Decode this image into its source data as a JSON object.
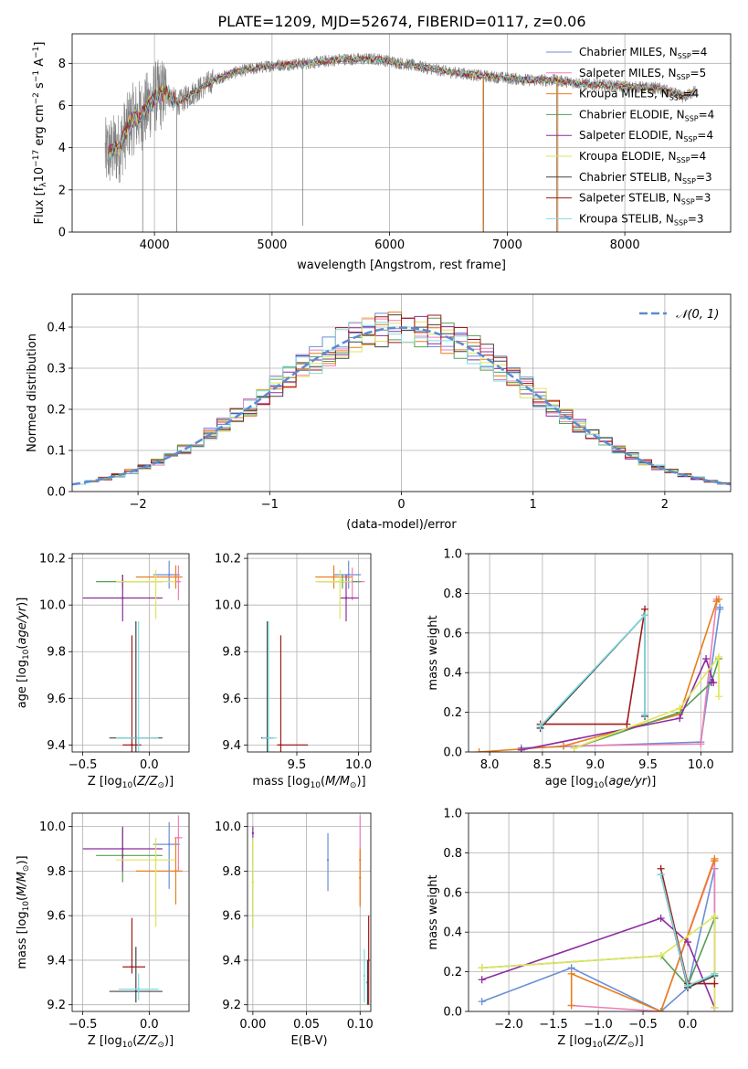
{
  "figure_title": "PLATE=1209, MJD=52674, FIBERID=0117, z=0.06",
  "colors": {
    "Chabrier MILES": "#6a8fd6",
    "Salpeter MILES": "#f07fb5",
    "Kroupa MILES": "#e87e1c",
    "Chabrier ELODIE": "#55a055",
    "Salpeter ELODIE": "#8e2c9f",
    "Kroupa ELODIE": "#dfe65a",
    "Chabrier STELIB": "#444444",
    "Salpeter STELIB": "#a01a1a",
    "Kroupa STELIB": "#7fdbe0",
    "gaussian": "#5b8bd0",
    "data": "#808080"
  },
  "chart_data": [
    {
      "type": "line",
      "panel": "spectrum",
      "xlabel": "wavelength [Angstrom, rest frame]",
      "ylabel_parts": [
        "Flux [f",
        "λ",
        "10",
        "−17",
        " erg cm",
        "−2",
        " s",
        "−1",
        " A",
        "−1",
        "]"
      ],
      "xlim": [
        3300,
        8900
      ],
      "ylim": [
        0,
        9.4
      ],
      "xticks": [
        4000,
        5000,
        6000,
        7000,
        8000
      ],
      "yticks": [
        0,
        2,
        4,
        6,
        8
      ],
      "legend_position": "right",
      "legend": [
        {
          "name": "Chabrier MILES",
          "n": "4"
        },
        {
          "name": "Salpeter MILES",
          "n": "5"
        },
        {
          "name": "Kroupa MILES",
          "n": "4"
        },
        {
          "name": "Chabrier ELODIE",
          "n": "4"
        },
        {
          "name": "Salpeter ELODIE",
          "n": "4"
        },
        {
          "name": "Kroupa ELODIE",
          "n": "4"
        },
        {
          "name": "Chabrier STELIB",
          "n": "3"
        },
        {
          "name": "Salpeter STELIB",
          "n": "3"
        },
        {
          "name": "Kroupa STELIB",
          "n": "3"
        }
      ],
      "continuum": [
        [
          3580,
          3.7
        ],
        [
          3700,
          4.0
        ],
        [
          3800,
          5.3
        ],
        [
          3900,
          5.6
        ],
        [
          4000,
          6.4
        ],
        [
          4100,
          6.6
        ],
        [
          4200,
          6.1
        ],
        [
          4300,
          6.5
        ],
        [
          4500,
          7.2
        ],
        [
          4700,
          7.6
        ],
        [
          5000,
          7.9
        ],
        [
          5300,
          8.0
        ],
        [
          5600,
          8.2
        ],
        [
          5900,
          8.2
        ],
        [
          6200,
          7.9
        ],
        [
          6500,
          7.6
        ],
        [
          6800,
          7.4
        ],
        [
          7000,
          7.3
        ],
        [
          7200,
          7.2
        ],
        [
          7400,
          7.2
        ],
        [
          7700,
          7.0
        ],
        [
          8000,
          6.9
        ],
        [
          8300,
          6.8
        ],
        [
          8500,
          6.4
        ],
        [
          8600,
          6.7
        ]
      ]
    },
    {
      "type": "line",
      "panel": "residual_histograms",
      "xlabel": "(data-model)/error",
      "ylabel": "Normed distribution",
      "xlim": [
        -2.5,
        2.5
      ],
      "ylim": [
        0,
        0.48
      ],
      "xticks": [
        -2,
        -1,
        0,
        1,
        2
      ],
      "yticks": [
        0.0,
        0.1,
        0.2,
        0.3,
        0.4
      ],
      "legend_position": "upper right",
      "legend_label": "𝒩(0, 1)",
      "gaussian": {
        "mu": 0,
        "sigma": 1
      },
      "bin_width": 0.1
    },
    {
      "type": "scatter",
      "panel": "metallicity_vs_age",
      "xlabel": "Z [log10(Z/Z⊙)]",
      "ylabel": "age  [log10(age/yr)]",
      "xlim": [
        -0.58,
        0.3
      ],
      "ylim": [
        9.37,
        10.22
      ],
      "xticks": [
        -0.5,
        0.0
      ],
      "yticks": [
        9.4,
        9.6,
        9.8,
        10.0,
        10.2
      ],
      "points": [
        {
          "model": "Chabrier MILES",
          "x": 0.15,
          "xerr": [
            0.12,
            0.08
          ],
          "y": 10.13,
          "yerr": [
            0.06,
            0.06
          ]
        },
        {
          "model": "Salpeter MILES",
          "x": 0.22,
          "xerr": [
            0.02,
            0.02
          ],
          "y": 10.1,
          "yerr": [
            0.08,
            0.07
          ]
        },
        {
          "model": "Kroupa MILES",
          "x": 0.2,
          "xerr": [
            0.3,
            0.05
          ],
          "y": 10.12,
          "yerr": [
            0.05,
            0.05
          ]
        },
        {
          "model": "Chabrier ELODIE",
          "x": -0.2,
          "xerr": [
            0.2,
            0.3
          ],
          "y": 10.1,
          "yerr": [
            0.03,
            0.03
          ]
        },
        {
          "model": "Salpeter ELODIE",
          "x": -0.2,
          "xerr": [
            0.3,
            0.3
          ],
          "y": 10.03,
          "yerr": [
            0.1,
            0.1
          ]
        },
        {
          "model": "Kroupa ELODIE",
          "x": 0.05,
          "xerr": [
            0.3,
            0.15
          ],
          "y": 10.1,
          "yerr": [
            0.16,
            0.05
          ]
        },
        {
          "model": "Chabrier STELIB",
          "x": -0.1,
          "xerr": [
            0.2,
            0.2
          ],
          "y": 9.43,
          "yerr": [
            0.5,
            0.5
          ]
        },
        {
          "model": "Salpeter STELIB",
          "x": -0.13,
          "xerr": [
            0.07,
            0.07
          ],
          "y": 9.4,
          "yerr": [
            0.47,
            0.47
          ]
        },
        {
          "model": "Kroupa STELIB",
          "x": -0.08,
          "xerr": [
            0.17,
            0.15
          ],
          "y": 9.43,
          "yerr": [
            0.5,
            0.5
          ]
        }
      ]
    },
    {
      "type": "scatter",
      "panel": "mass_vs_age",
      "xlabel": "mass [log10(M/M⊙)]",
      "ylabel": "",
      "xlim": [
        9.1,
        10.1
      ],
      "ylim": [
        9.37,
        10.22
      ],
      "xticks": [
        9.5,
        10.0
      ],
      "yticks": [
        9.4,
        9.6,
        9.8,
        10.0,
        10.2
      ],
      "points": [
        {
          "model": "Chabrier MILES",
          "x": 9.92,
          "xerr": [
            0.12,
            0.1
          ],
          "y": 10.13,
          "yerr": [
            0.06,
            0.06
          ]
        },
        {
          "model": "Salpeter MILES",
          "x": 9.95,
          "xerr": [
            0.1,
            0.1
          ],
          "y": 10.1,
          "yerr": [
            0.08,
            0.06
          ]
        },
        {
          "model": "Kroupa MILES",
          "x": 9.8,
          "xerr": [
            0.15,
            0.15
          ],
          "y": 10.12,
          "yerr": [
            0.05,
            0.05
          ]
        },
        {
          "model": "Chabrier ELODIE",
          "x": 9.87,
          "xerr": [
            0.2,
            0.15
          ],
          "y": 10.1,
          "yerr": [
            0.03,
            0.03
          ]
        },
        {
          "model": "Salpeter ELODIE",
          "x": 9.9,
          "xerr": [
            0.05,
            0.1
          ],
          "y": 10.03,
          "yerr": [
            0.1,
            0.1
          ]
        },
        {
          "model": "Kroupa ELODIE",
          "x": 9.85,
          "xerr": [
            0.2,
            0.1
          ],
          "y": 10.1,
          "yerr": [
            0.16,
            0.05
          ]
        },
        {
          "model": "Chabrier STELIB",
          "x": 9.26,
          "xerr": [
            0.05,
            0.05
          ],
          "y": 9.43,
          "yerr": [
            0.5,
            0.5
          ]
        },
        {
          "model": "Salpeter STELIB",
          "x": 9.37,
          "xerr": [
            0.03,
            0.22
          ],
          "y": 9.4,
          "yerr": [
            0.47,
            0.47
          ]
        },
        {
          "model": "Kroupa STELIB",
          "x": 9.27,
          "xerr": [
            0.05,
            0.07
          ],
          "y": 9.43,
          "yerr": [
            0.5,
            0.5
          ]
        }
      ]
    },
    {
      "type": "line",
      "panel": "age_weights",
      "xlabel": "age  [log10(age/yr)]",
      "ylabel": "mass weight",
      "xlim": [
        7.8,
        10.3
      ],
      "ylim": [
        0,
        1
      ],
      "xticks": [
        8.0,
        8.5,
        9.0,
        9.5,
        10.0
      ],
      "yticks": [
        0.0,
        0.2,
        0.4,
        0.6,
        0.8,
        1.0
      ],
      "series": [
        {
          "model": "Chabrier MILES",
          "x": [
            8.3,
            10.0,
            10.18,
            10.18
          ],
          "y": [
            0.02,
            0.05,
            0.72,
            0.73
          ]
        },
        {
          "model": "Salpeter MILES",
          "x": [
            8.7,
            10.0,
            10.15,
            10.15
          ],
          "y": [
            0.03,
            0.04,
            0.76,
            0.77
          ]
        },
        {
          "model": "Kroupa MILES",
          "x": [
            7.9,
            8.7,
            9.8,
            10.15,
            10.17
          ],
          "y": [
            0.0,
            0.03,
            0.19,
            0.76,
            0.77
          ]
        },
        {
          "model": "Chabrier ELODIE",
          "x": [
            8.8,
            9.8,
            10.1,
            10.17
          ],
          "y": [
            0.02,
            0.2,
            0.35,
            0.47
          ]
        },
        {
          "model": "Salpeter ELODIE",
          "x": [
            8.3,
            9.8,
            10.05,
            10.12,
            10.1
          ],
          "y": [
            0.01,
            0.17,
            0.47,
            0.35,
            0.35
          ]
        },
        {
          "model": "Kroupa ELODIE",
          "x": [
            8.8,
            9.8,
            10.17,
            10.17
          ],
          "y": [
            0.02,
            0.22,
            0.48,
            0.28
          ]
        },
        {
          "model": "Chabrier STELIB",
          "x": [
            8.48,
            9.47,
            9.47
          ],
          "y": [
            0.12,
            0.69,
            0.18
          ]
        },
        {
          "model": "Salpeter STELIB",
          "x": [
            8.48,
            9.3,
            9.47
          ],
          "y": [
            0.14,
            0.14,
            0.72
          ]
        },
        {
          "model": "Kroupa STELIB",
          "x": [
            8.48,
            9.47,
            9.47
          ],
          "y": [
            0.13,
            0.69,
            0.19
          ]
        }
      ]
    },
    {
      "type": "scatter",
      "panel": "metallicity_vs_mass",
      "xlabel": "Z [log10(Z/Z⊙)]",
      "ylabel": "mass [log10(M/M⊙)]",
      "xlim": [
        -0.58,
        0.3
      ],
      "ylim": [
        9.17,
        10.06
      ],
      "xticks": [
        -0.5,
        0.0
      ],
      "yticks": [
        9.2,
        9.4,
        9.6,
        9.8,
        10.0
      ],
      "points": [
        {
          "model": "Chabrier MILES",
          "x": 0.15,
          "xerr": [
            0.12,
            0.08
          ],
          "y": 9.92,
          "yerr": [
            0.2,
            0.1
          ]
        },
        {
          "model": "Salpeter MILES",
          "x": 0.22,
          "xerr": [
            0.03,
            0.03
          ],
          "y": 9.95,
          "yerr": [
            0.15,
            0.1
          ]
        },
        {
          "model": "Kroupa MILES",
          "x": 0.2,
          "xerr": [
            0.3,
            0.05
          ],
          "y": 9.8,
          "yerr": [
            0.15,
            0.15
          ]
        },
        {
          "model": "Chabrier ELODIE",
          "x": -0.2,
          "xerr": [
            0.2,
            0.3
          ],
          "y": 9.87,
          "yerr": [
            0.12,
            0.12
          ]
        },
        {
          "model": "Salpeter ELODIE",
          "x": -0.2,
          "xerr": [
            0.3,
            0.3
          ],
          "y": 9.9,
          "yerr": [
            0.1,
            0.1
          ]
        },
        {
          "model": "Kroupa ELODIE",
          "x": 0.05,
          "xerr": [
            0.3,
            0.15
          ],
          "y": 9.85,
          "yerr": [
            0.3,
            0.1
          ]
        },
        {
          "model": "Chabrier STELIB",
          "x": -0.1,
          "xerr": [
            0.2,
            0.2
          ],
          "y": 9.26,
          "yerr": [
            0.05,
            0.2
          ]
        },
        {
          "model": "Salpeter STELIB",
          "x": -0.13,
          "xerr": [
            0.07,
            0.1
          ],
          "y": 9.37,
          "yerr": [
            0.03,
            0.22
          ]
        },
        {
          "model": "Kroupa STELIB",
          "x": -0.08,
          "xerr": [
            0.15,
            0.15
          ],
          "y": 9.27,
          "yerr": [
            0.05,
            0.07
          ]
        }
      ]
    },
    {
      "type": "scatter",
      "panel": "ebv_vs_mass",
      "xlabel": "E(B-V)",
      "ylabel": "",
      "xlim": [
        -0.005,
        0.11
      ],
      "ylim": [
        9.17,
        10.06
      ],
      "xticks": [
        0.0,
        0.05,
        0.1
      ],
      "yticks": [
        9.2,
        9.4,
        9.6,
        9.8,
        10.0
      ],
      "points": [
        {
          "model": "Chabrier MILES",
          "x": 0.07,
          "y": 9.85,
          "yerr": [
            0.14,
            0.12
          ]
        },
        {
          "model": "Salpeter MILES",
          "x": 0.1,
          "y": 9.85,
          "yerr": [
            0.2,
            0.2
          ]
        },
        {
          "model": "Kroupa MILES",
          "x": 0.1,
          "y": 9.77,
          "yerr": [
            0.13,
            0.13
          ]
        },
        {
          "model": "Chabrier ELODIE",
          "x": 0.0,
          "y": 9.75,
          "yerr": [
            0.2,
            0.2
          ]
        },
        {
          "model": "Salpeter ELODIE",
          "x": 0.0,
          "y": 9.97,
          "yerr": [
            0.03,
            0.03
          ]
        },
        {
          "model": "Kroupa ELODIE",
          "x": 0.0,
          "y": 9.75,
          "yerr": [
            0.2,
            0.2
          ]
        },
        {
          "model": "Chabrier STELIB",
          "x": 0.107,
          "y": 9.3,
          "yerr": [
            0.1,
            0.1
          ]
        },
        {
          "model": "Salpeter STELIB",
          "x": 0.108,
          "y": 9.4,
          "yerr": [
            0.2,
            0.2
          ]
        },
        {
          "model": "Kroupa STELIB",
          "x": 0.104,
          "y": 9.33,
          "yerr": [
            0.12,
            0.12
          ]
        }
      ]
    },
    {
      "type": "line",
      "panel": "metallicity_weights",
      "xlabel": "Z [log10(Z/Z⊙)]",
      "ylabel": "mass weight",
      "xlim": [
        -2.45,
        0.5
      ],
      "ylim": [
        0,
        1
      ],
      "xticks": [
        -2.0,
        -1.5,
        -1.0,
        -0.5,
        0.0
      ],
      "yticks": [
        0.0,
        0.2,
        0.4,
        0.6,
        0.8,
        1.0
      ],
      "series": [
        {
          "model": "Chabrier MILES",
          "x": [
            -2.3,
            -1.3,
            -0.3,
            0.0,
            0.3,
            0.3
          ],
          "y": [
            0.05,
            0.22,
            0.0,
            0.12,
            0.72,
            0.19
          ]
        },
        {
          "model": "Salpeter MILES",
          "x": [
            -1.3,
            -0.3,
            0.3,
            0.3
          ],
          "y": [
            0.03,
            0.0,
            0.76,
            0.02
          ]
        },
        {
          "model": "Kroupa MILES",
          "x": [
            -1.3,
            -1.3,
            -0.3,
            0.3,
            0.3
          ],
          "y": [
            0.03,
            0.19,
            0.0,
            0.77,
            0.76
          ]
        },
        {
          "model": "Chabrier ELODIE",
          "x": [
            -2.3,
            -0.3,
            0.0,
            0.3
          ],
          "y": [
            0.22,
            0.28,
            0.13,
            0.47
          ]
        },
        {
          "model": "Salpeter ELODIE",
          "x": [
            -2.3,
            -0.3,
            0.0,
            0.3
          ],
          "y": [
            0.16,
            0.47,
            0.35,
            0.02
          ]
        },
        {
          "model": "Kroupa ELODIE",
          "x": [
            -2.3,
            -0.3,
            0.3,
            0.3,
            0.3
          ],
          "y": [
            0.22,
            0.28,
            0.48,
            0.02,
            0.2
          ]
        },
        {
          "model": "Chabrier STELIB",
          "x": [
            -0.3,
            0.0,
            0.3
          ],
          "y": [
            0.69,
            0.12,
            0.18
          ]
        },
        {
          "model": "Salpeter STELIB",
          "x": [
            -0.3,
            0.0,
            0.3
          ],
          "y": [
            0.72,
            0.14,
            0.14
          ]
        },
        {
          "model": "Kroupa STELIB",
          "x": [
            -0.3,
            0.0,
            0.3
          ],
          "y": [
            0.69,
            0.13,
            0.19
          ]
        }
      ]
    }
  ]
}
